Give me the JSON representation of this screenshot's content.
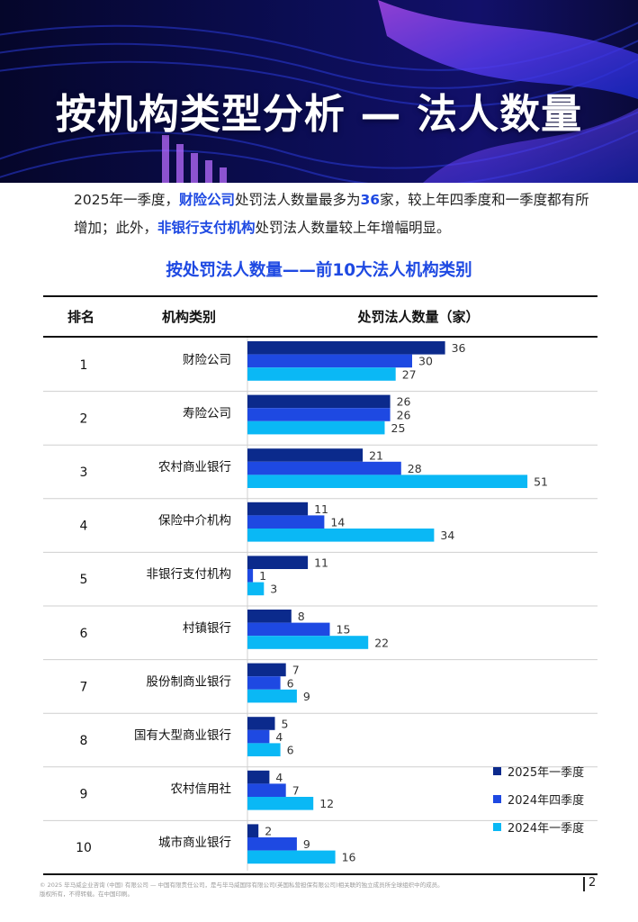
{
  "page": {
    "title": "按机构类型分析 — 法人数量",
    "intro_parts": [
      {
        "text": "2025年一季度，",
        "hl": false
      },
      {
        "text": "财险公司",
        "hl": true
      },
      {
        "text": "处罚法人数量最多为",
        "hl": false
      },
      {
        "text": "36",
        "hl": true
      },
      {
        "text": "家，较上年四季度和一季度都有所增加；此外，",
        "hl": false
      },
      {
        "text": "非银行支付机构",
        "hl": true
      },
      {
        "text": "处罚法人数量较上年增幅明显。",
        "hl": false
      }
    ],
    "footer_line1": "© 2025 毕马威企业咨询 (中国) 有限公司 — 中国有限责任公司，是与毕马威国际有限公司(英国私营担保有限公司)相关联的独立成员所全球组织中的成员。",
    "footer_line2": "版权所有，不得转载。在中国印刷。",
    "page_number": "2",
    "colors": {
      "accent": "#1e49e2",
      "banner_dark": "#0a0c45",
      "banner_purple": "#7a2fd8"
    }
  },
  "chart_data": {
    "type": "bar",
    "orientation": "horizontal",
    "title": "按处罚法人数量——前10大法人机构类别",
    "columns": {
      "rank": "排名",
      "category": "机构类别",
      "value": "处罚法人数量（家）"
    },
    "ranks": [
      "1",
      "2",
      "3",
      "4",
      "5",
      "6",
      "7",
      "8",
      "9",
      "10"
    ],
    "categories": [
      "财险公司",
      "寿险公司",
      "农村商业银行",
      "保险中介机构",
      "非银行支付机构",
      "村镇银行",
      "股份制商业银行",
      "国有大型商业银行",
      "农村信用社",
      "城市商业银行"
    ],
    "series": [
      {
        "name": "2025年一季度",
        "color": "#0b2a8c",
        "values": [
          36,
          26,
          21,
          11,
          11,
          8,
          7,
          5,
          4,
          2
        ]
      },
      {
        "name": "2024年四季度",
        "color": "#1e49e2",
        "values": [
          30,
          26,
          28,
          14,
          1,
          15,
          6,
          4,
          7,
          9
        ]
      },
      {
        "name": "2024年一季度",
        "color": "#0ab8f5",
        "values": [
          27,
          25,
          51,
          34,
          3,
          22,
          9,
          6,
          12,
          16
        ]
      }
    ],
    "xlim": [
      0,
      53
    ],
    "legend_position": "bottom-right",
    "grid": false
  }
}
